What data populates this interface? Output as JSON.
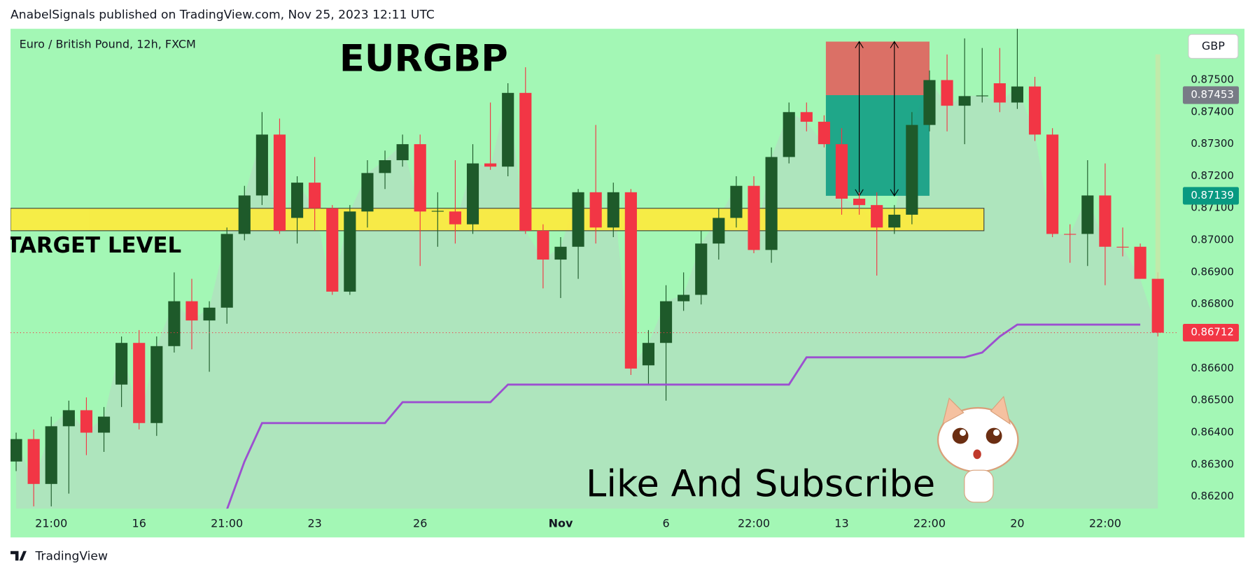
{
  "header": "AnabelSignals published on TradingView.com, Nov 25, 2023 12:11 UTC",
  "footer": "TradingView",
  "overlay_text": "Like And Subscribe",
  "chart_data": {
    "type": "candlestick",
    "title": "EURGBP",
    "subtitle": "Euro / British Pound, 12h, FXCM",
    "currency": "GBP",
    "categories": [
      null,
      null,
      "21:00",
      null,
      null,
      null,
      null,
      "16",
      null,
      null,
      null,
      null,
      "21:00",
      null,
      null,
      null,
      null,
      "23",
      null,
      null,
      null,
      null,
      null,
      "26",
      null,
      null,
      null,
      null,
      null,
      null,
      null,
      "Nov",
      null,
      null,
      null,
      null,
      null,
      "6",
      null,
      null,
      null,
      null,
      "22:00",
      null,
      null,
      null,
      null,
      "13",
      null,
      null,
      null,
      null,
      "22:00",
      null,
      null,
      null,
      null,
      "20",
      null,
      null,
      null,
      null,
      "22:00",
      null,
      null,
      null
    ],
    "open": [
      0.8631,
      0.8638,
      0.8624,
      0.8642,
      0.8647,
      0.864,
      0.8655,
      0.8668,
      0.8643,
      0.8667,
      0.8681,
      0.8675,
      0.8679,
      0.8702,
      0.8714,
      0.8733,
      0.8707,
      0.8718,
      0.871,
      0.8684,
      0.8709,
      0.8721,
      0.8725,
      0.873,
      0.8709,
      0.8709,
      0.8705,
      0.8724,
      0.8723,
      0.8746,
      0.8703,
      0.8694,
      0.8698,
      0.8715,
      0.8704,
      0.8715,
      0.8661,
      0.8668,
      0.8681,
      0.8683,
      0.8699,
      0.8707,
      0.8717,
      0.8697,
      0.8726,
      0.874,
      0.8737,
      0.873,
      0.8713,
      0.8711,
      0.8704,
      0.8708,
      0.8736,
      0.875,
      0.8742,
      0.8745,
      0.8749,
      0.8743,
      0.8748,
      0.8733,
      0.8702,
      0.8702,
      0.8714,
      0.8698,
      0.8698,
      0.8688
    ],
    "high": [
      0.864,
      0.8641,
      0.8645,
      0.865,
      0.8651,
      0.8648,
      0.867,
      0.8672,
      0.867,
      0.869,
      0.8688,
      0.8681,
      0.8704,
      0.8717,
      0.874,
      0.8738,
      0.872,
      0.8726,
      0.8711,
      0.8711,
      0.8725,
      0.8728,
      0.8733,
      0.8733,
      0.8715,
      0.8725,
      0.873,
      0.8743,
      0.8749,
      0.8754,
      0.8705,
      0.8701,
      0.8716,
      0.8736,
      0.8718,
      0.8716,
      0.8672,
      0.8686,
      0.869,
      0.8703,
      0.871,
      0.872,
      0.872,
      0.8729,
      0.8743,
      0.8743,
      0.8739,
      0.8735,
      0.8715,
      0.8715,
      0.8711,
      0.874,
      0.8753,
      0.8758,
      0.8763,
      0.876,
      0.876,
      0.8766,
      0.8751,
      0.8735,
      0.8705,
      0.8725,
      0.8724,
      0.8704,
      0.8699,
      0.869
    ],
    "low": [
      0.8628,
      0.8617,
      0.8617,
      0.8621,
      0.8633,
      0.8634,
      0.8648,
      0.8641,
      0.8639,
      0.8665,
      0.8666,
      0.8659,
      0.8674,
      0.87,
      0.8711,
      0.8702,
      0.8699,
      0.8703,
      0.8683,
      0.8683,
      0.8704,
      0.8716,
      0.8723,
      0.8692,
      0.8698,
      0.8699,
      0.8702,
      0.8722,
      0.872,
      0.8702,
      0.8685,
      0.8682,
      0.8688,
      0.8699,
      0.8701,
      0.8658,
      0.8655,
      0.865,
      0.8678,
      0.868,
      0.8694,
      0.8704,
      0.8696,
      0.8693,
      0.8724,
      0.8734,
      0.8729,
      0.8708,
      0.8708,
      0.8689,
      0.8702,
      0.8705,
      0.8734,
      0.8734,
      0.873,
      0.8743,
      0.874,
      0.8741,
      0.8731,
      0.8701,
      0.8693,
      0.8692,
      0.8686,
      0.8695,
      0.8688,
      0.867
    ],
    "close": [
      0.8638,
      0.8624,
      0.8642,
      0.8647,
      0.864,
      0.8645,
      0.8668,
      0.8643,
      0.8667,
      0.8681,
      0.8675,
      0.8679,
      0.8702,
      0.8714,
      0.8733,
      0.8703,
      0.8718,
      0.871,
      0.8684,
      0.8709,
      0.8721,
      0.8725,
      0.873,
      0.8709,
      0.87092,
      0.8705,
      0.8724,
      0.8723,
      0.8746,
      0.8703,
      0.8694,
      0.8698,
      0.8715,
      0.8704,
      0.8715,
      0.866,
      0.8668,
      0.8681,
      0.8683,
      0.8699,
      0.8707,
      0.8717,
      0.8697,
      0.8726,
      0.874,
      0.8737,
      0.873,
      0.8713,
      0.8711,
      0.8704,
      0.8708,
      0.8736,
      0.875,
      0.8742,
      0.8745,
      0.87452,
      0.8743,
      0.8748,
      0.8733,
      0.8702,
      0.87018,
      0.8714,
      0.8698,
      0.86978,
      0.8688,
      0.86712
    ],
    "up_color": "#1e5a2a",
    "down_color": "#f23645",
    "stop_line": {
      "color": "#9c4fd0",
      "values": [
        null,
        null,
        null,
        null,
        null,
        null,
        null,
        null,
        null,
        null,
        null,
        null,
        0.8616,
        0.8631,
        0.8643,
        0.8643,
        0.8643,
        0.8643,
        0.8643,
        0.8643,
        0.8643,
        0.8643,
        0.86495,
        0.86495,
        0.86495,
        0.86495,
        0.86495,
        0.86495,
        0.8655,
        0.8655,
        0.8655,
        0.8655,
        0.8655,
        0.8655,
        0.8655,
        0.8655,
        0.8655,
        0.8655,
        0.8655,
        0.8655,
        0.8655,
        0.8655,
        0.8655,
        0.8655,
        0.8655,
        0.86635,
        0.86635,
        0.86635,
        0.86635,
        0.86635,
        0.86635,
        0.86635,
        0.86635,
        0.86635,
        0.86635,
        0.8665,
        0.867,
        0.86737,
        0.86737,
        0.86737,
        0.86737,
        0.86737,
        0.86737,
        0.86737,
        0.86737,
        null
      ]
    },
    "target_zone": {
      "label": "TARGET LEVEL",
      "ylim": [
        0.8703,
        0.871
      ],
      "color": "#ffeb3b"
    },
    "position": {
      "stop": 0.8762,
      "entry": 0.87453,
      "target": 0.87139
    },
    "price_labels": [
      {
        "value": 0.87453,
        "color": "#787b86"
      },
      {
        "value": 0.87139,
        "color": "#089981"
      },
      {
        "value": 0.86712,
        "color": "#f23645"
      }
    ],
    "ylim": [
      0.86163,
      0.8766
    ],
    "yticks": [
      {
        "value": 0.862,
        "label": "0.86200"
      },
      {
        "value": 0.863,
        "label": "0.86300"
      },
      {
        "value": 0.864,
        "label": "0.86400"
      },
      {
        "value": 0.865,
        "label": "0.86500"
      },
      {
        "value": 0.866,
        "label": "0.86600"
      },
      {
        "value": 0.867,
        "label": "0.86700"
      },
      {
        "value": 0.868,
        "label": "0.86800"
      },
      {
        "value": 0.869,
        "label": "0.86900"
      },
      {
        "value": 0.87,
        "label": "0.87000"
      },
      {
        "value": 0.871,
        "label": "0.87100"
      },
      {
        "value": 0.872,
        "label": "0.87200"
      },
      {
        "value": 0.873,
        "label": "0.87300"
      },
      {
        "value": 0.874,
        "label": "0.87400"
      },
      {
        "value": 0.875,
        "label": "0.87500"
      }
    ]
  }
}
